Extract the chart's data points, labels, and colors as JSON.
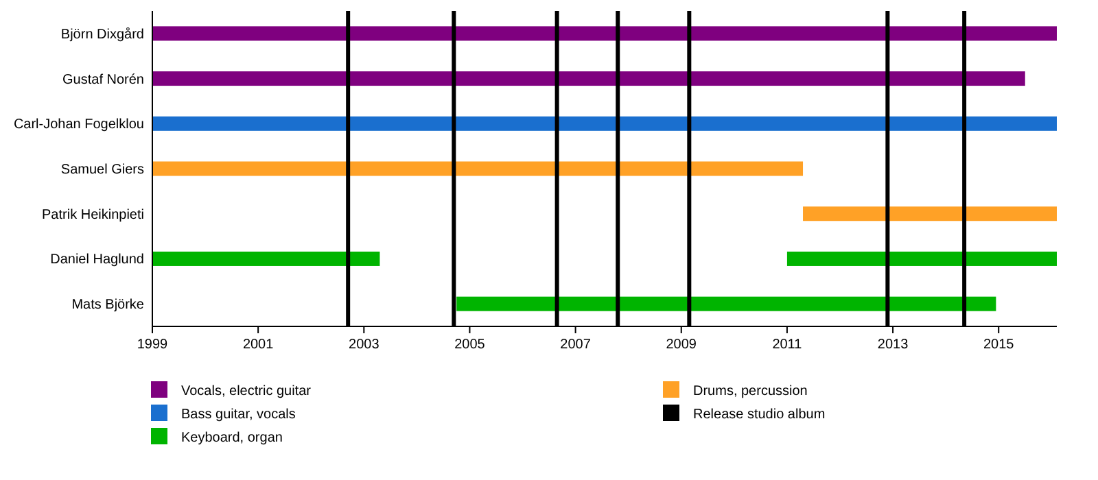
{
  "chart_data": {
    "type": "bar",
    "orientation": "horizontal",
    "categories": [
      "Björn Dixgård",
      "Gustaf Norén",
      "Carl-Johan Fogelklou",
      "Samuel Giers",
      "Patrik Heikinpieti",
      "Daniel Haglund",
      "Mats Björke"
    ],
    "series": [
      {
        "name": "Vocals, electric guitar",
        "color": "#7f007f",
        "base": [
          1999,
          1999,
          null,
          null,
          null,
          null,
          null
        ],
        "values": [
          17.1,
          16.5,
          null,
          null,
          null,
          null,
          null
        ]
      },
      {
        "name": "Bass guitar, vocals",
        "color": "#1a6fcf",
        "base": [
          null,
          null,
          1999,
          null,
          null,
          null,
          null
        ],
        "values": [
          null,
          null,
          17.1,
          null,
          null,
          null,
          null
        ]
      },
      {
        "name": "Keyboard, organ",
        "color": "#00b400",
        "base": [
          null,
          null,
          null,
          null,
          null,
          1999,
          2004.75
        ],
        "values": [
          null,
          null,
          null,
          null,
          null,
          4.3,
          10.2
        ]
      },
      {
        "name": "Drums, percussion",
        "color": "#ffa126",
        "base": [
          null,
          null,
          null,
          1999,
          2011.3,
          null,
          null
        ],
        "values": [
          null,
          null,
          null,
          12.3,
          4.8,
          null,
          null
        ]
      },
      {
        "color": "#00b400",
        "base": [
          null,
          null,
          null,
          null,
          null,
          2011.0,
          null
        ],
        "values": [
          null,
          null,
          null,
          null,
          null,
          5.1,
          null
        ]
      }
    ],
    "ref_lines": [
      {
        "axis": "x",
        "value": 2002.7,
        "label": "Release studio album",
        "color": "#000000"
      },
      {
        "axis": "x",
        "value": 2004.7,
        "color": "#000000"
      },
      {
        "axis": "x",
        "value": 2006.65,
        "color": "#000000"
      },
      {
        "axis": "x",
        "value": 2007.8,
        "color": "#000000"
      },
      {
        "axis": "x",
        "value": 2009.15,
        "color": "#000000"
      },
      {
        "axis": "x",
        "value": 2012.9,
        "color": "#000000"
      },
      {
        "axis": "x",
        "value": 2014.35,
        "color": "#000000"
      }
    ],
    "xlim": [
      1999,
      2016.1
    ],
    "xticks": [
      1999,
      2001,
      2003,
      2005,
      2007,
      2009,
      2011,
      2013,
      2015
    ],
    "grid": false,
    "legend": "bottom"
  }
}
